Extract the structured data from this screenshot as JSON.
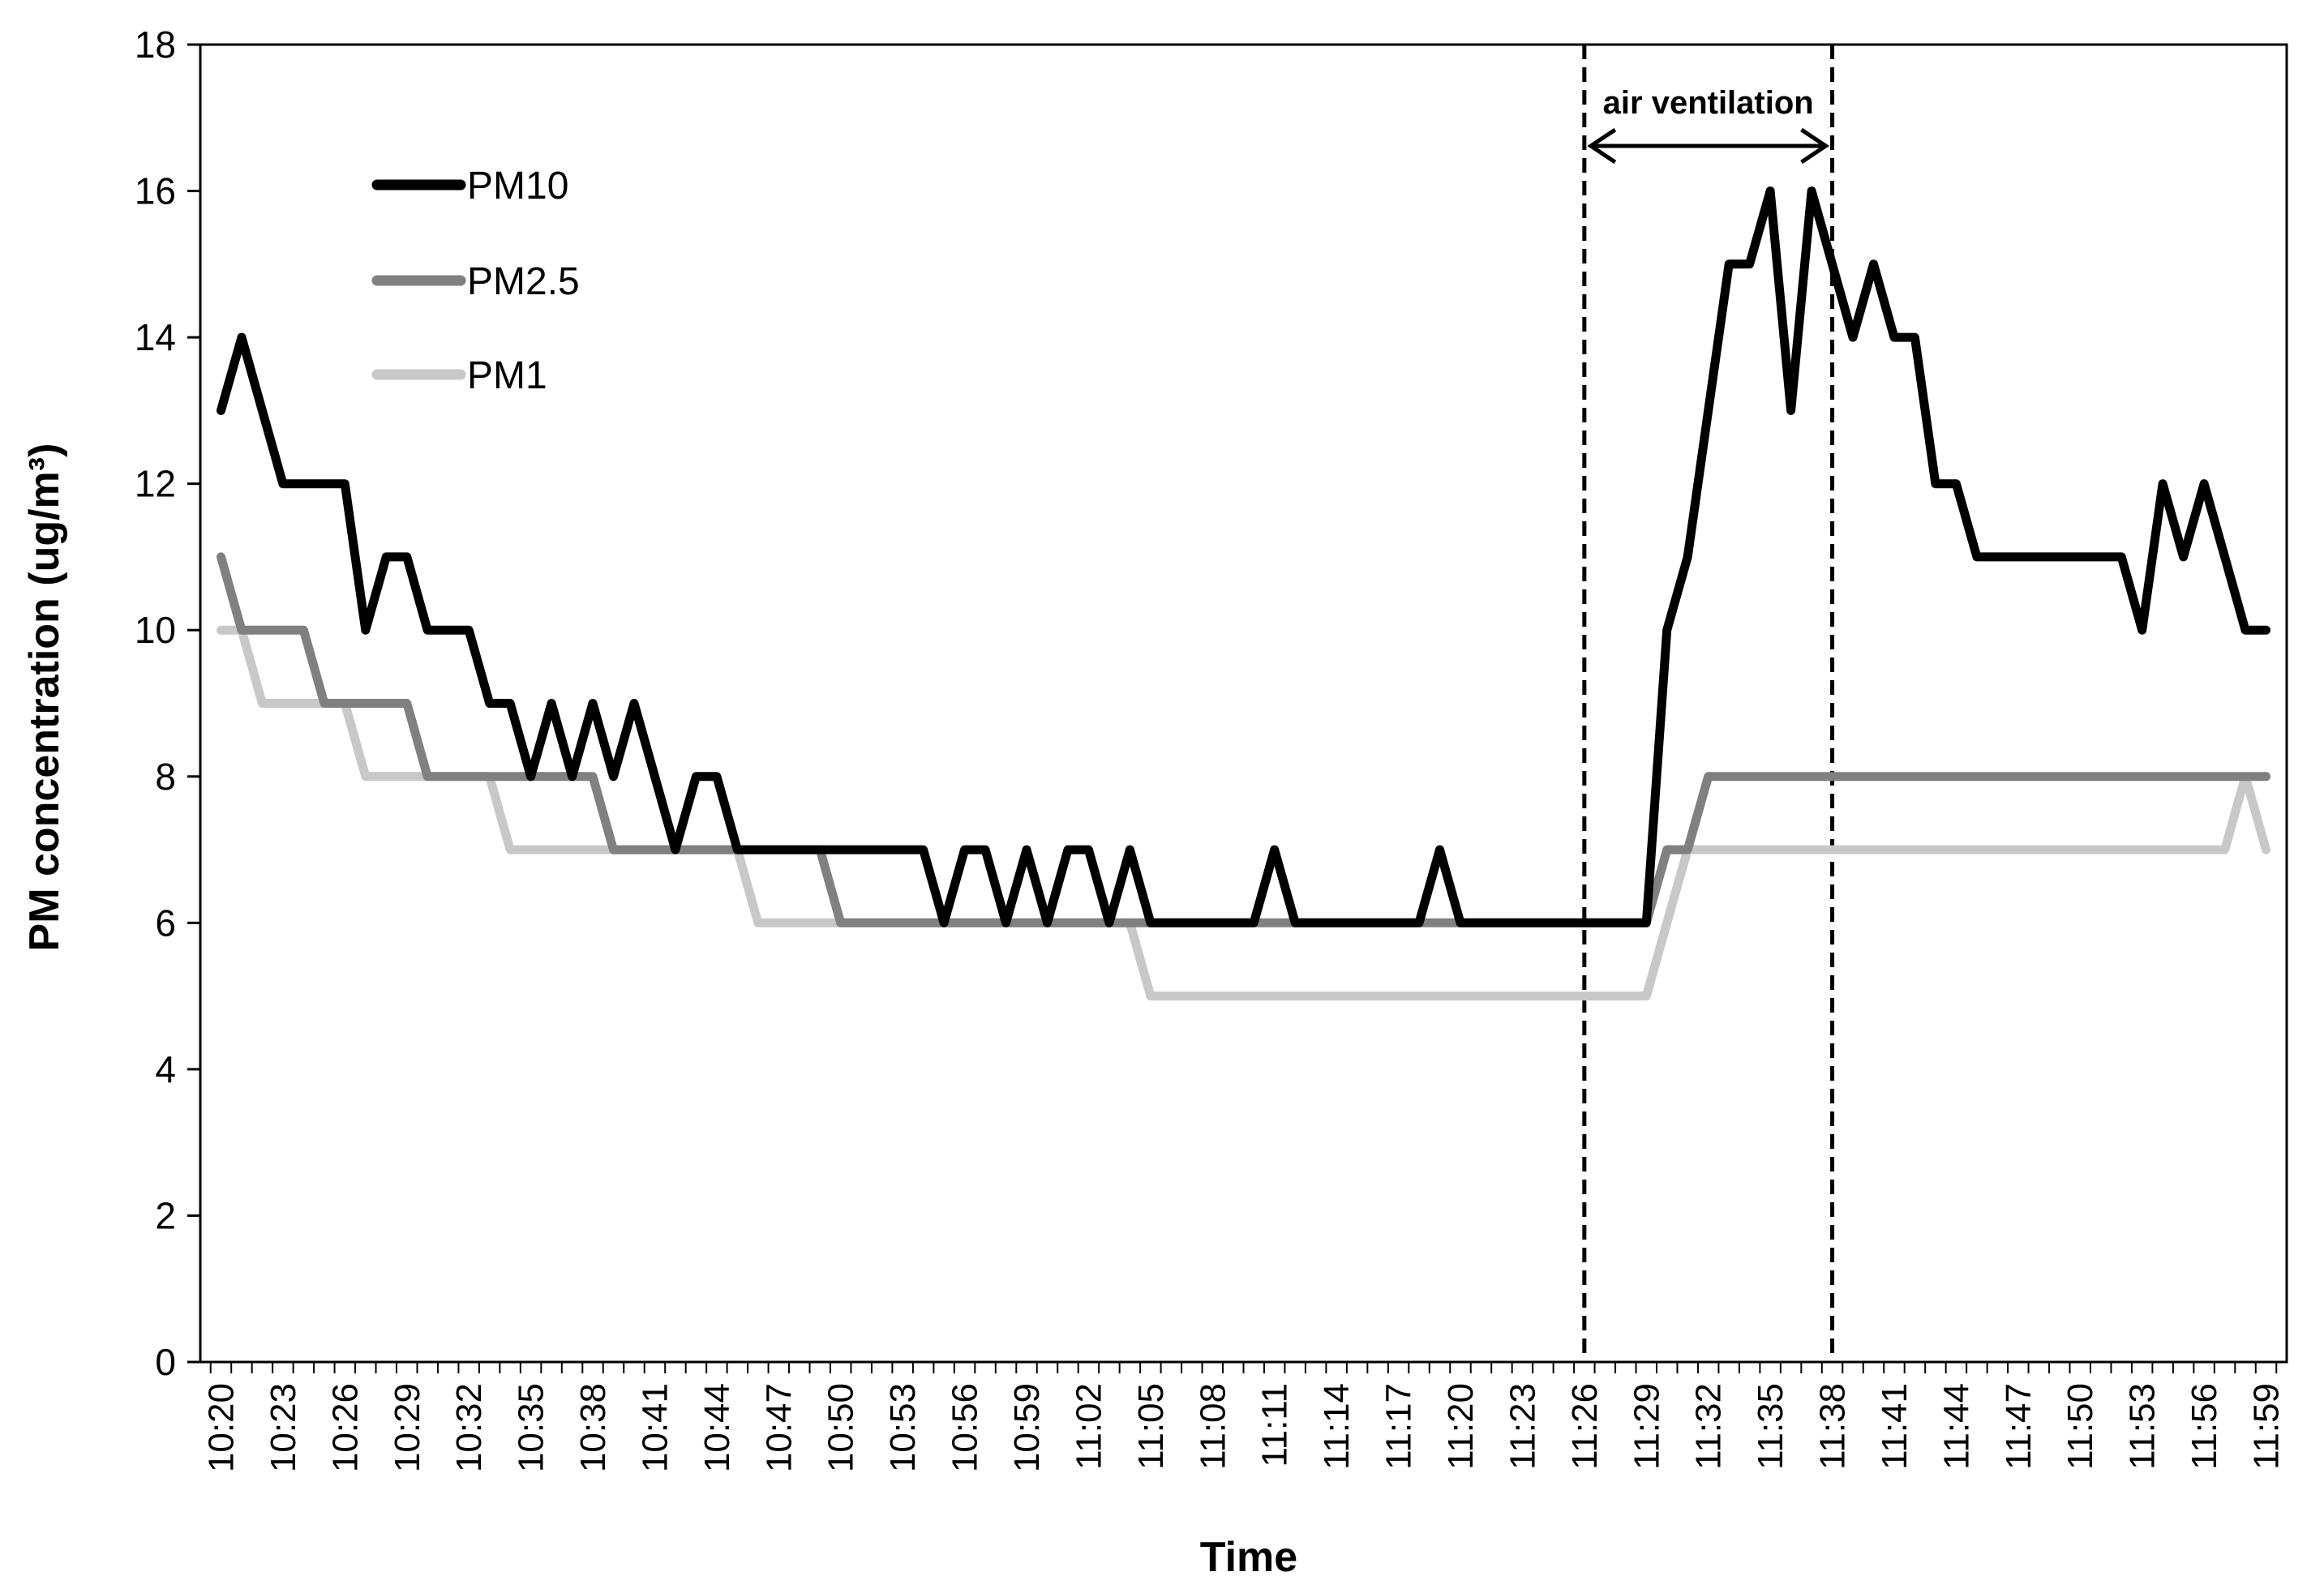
{
  "chart_data": {
    "type": "line",
    "xlabel": "Time",
    "ylabel": "PM concentration (ug/m³)",
    "ylim": [
      0,
      18
    ],
    "yticks": [
      0,
      2,
      4,
      6,
      8,
      10,
      12,
      14,
      16,
      18
    ],
    "grid": false,
    "legend_position": "top-left",
    "x": [
      "10:20",
      "10:21",
      "10:22",
      "10:23",
      "10:24",
      "10:25",
      "10:26",
      "10:27",
      "10:28",
      "10:29",
      "10:30",
      "10:31",
      "10:32",
      "10:33",
      "10:34",
      "10:35",
      "10:36",
      "10:37",
      "10:38",
      "10:39",
      "10:40",
      "10:41",
      "10:42",
      "10:43",
      "10:44",
      "10:45",
      "10:46",
      "10:47",
      "10:48",
      "10:49",
      "10:50",
      "10:51",
      "10:52",
      "10:53",
      "10:54",
      "10:55",
      "10:56",
      "10:57",
      "10:58",
      "10:59",
      "11:00",
      "11:01",
      "11:02",
      "11:03",
      "11:04",
      "11:05",
      "11:06",
      "11:07",
      "11:08",
      "11:09",
      "11:10",
      "11:11",
      "11:12",
      "11:13",
      "11:14",
      "11:15",
      "11:16",
      "11:17",
      "11:18",
      "11:19",
      "11:20",
      "11:21",
      "11:22",
      "11:23",
      "11:24",
      "11:25",
      "11:26",
      "11:27",
      "11:28",
      "11:29",
      "11:30",
      "11:31",
      "11:32",
      "11:33",
      "11:34",
      "11:35",
      "11:36",
      "11:37",
      "11:38",
      "11:39",
      "11:40",
      "11:41",
      "11:42",
      "11:43",
      "11:44",
      "11:45",
      "11:46",
      "11:47",
      "11:48",
      "11:49",
      "11:50",
      "11:51",
      "11:52",
      "11:53",
      "11:54",
      "11:55",
      "11:56",
      "11:57",
      "11:58",
      "11:59"
    ],
    "x_tick_labels": [
      "10:20",
      "10:23",
      "10:26",
      "10:29",
      "10:32",
      "10:35",
      "10:38",
      "10:41",
      "10:44",
      "10:47",
      "10:50",
      "10:53",
      "10:56",
      "10:59",
      "11:02",
      "11:05",
      "11:08",
      "11:11",
      "11:14",
      "11:17",
      "11:20",
      "11:23",
      "11:26",
      "11:29",
      "11:32",
      "11:35",
      "11:38",
      "11:41",
      "11:44",
      "11:47",
      "11:50",
      "11:53",
      "11:56",
      "11:59"
    ],
    "series": [
      {
        "name": "PM10",
        "color": "#000000",
        "values": [
          13,
          14,
          13,
          12,
          12,
          12,
          12,
          10,
          11,
          11,
          10,
          10,
          10,
          9,
          9,
          8,
          9,
          8,
          9,
          8,
          9,
          8,
          7,
          8,
          8,
          7,
          7,
          7,
          7,
          7,
          7,
          7,
          7,
          7,
          7,
          6,
          7,
          7,
          6,
          7,
          6,
          7,
          7,
          6,
          7,
          6,
          6,
          6,
          6,
          6,
          6,
          7,
          6,
          6,
          6,
          6,
          6,
          6,
          6,
          7,
          6,
          6,
          6,
          6,
          6,
          6,
          6,
          6,
          6,
          6,
          10,
          11,
          13,
          15,
          15,
          16,
          13,
          16,
          15,
          14,
          15,
          14,
          14,
          12,
          12,
          11,
          11,
          11,
          11,
          11,
          11,
          11,
          11,
          10,
          12,
          11,
          12,
          11,
          10,
          10
        ]
      },
      {
        "name": "PM2.5",
        "color": "#808080",
        "values": [
          11,
          10,
          10,
          10,
          10,
          9,
          9,
          9,
          9,
          9,
          8,
          8,
          8,
          8,
          8,
          8,
          8,
          8,
          8,
          7,
          7,
          7,
          7,
          7,
          7,
          7,
          7,
          7,
          7,
          7,
          6,
          6,
          6,
          6,
          6,
          6,
          6,
          6,
          6,
          6,
          6,
          6,
          6,
          6,
          6,
          6,
          6,
          6,
          6,
          6,
          6,
          6,
          6,
          6,
          6,
          6,
          6,
          6,
          6,
          6,
          6,
          6,
          6,
          6,
          6,
          6,
          6,
          6,
          6,
          6,
          7,
          7,
          8,
          8,
          8,
          8,
          8,
          8,
          8,
          8,
          8,
          8,
          8,
          8,
          8,
          8,
          8,
          8,
          8,
          8,
          8,
          8,
          8,
          8,
          8,
          8,
          8,
          8,
          8,
          8
        ]
      },
      {
        "name": "PM1",
        "color": "#c8c8c8",
        "values": [
          10,
          10,
          9,
          9,
          9,
          9,
          9,
          8,
          8,
          8,
          8,
          8,
          8,
          8,
          7,
          7,
          7,
          7,
          7,
          7,
          7,
          7,
          7,
          7,
          7,
          7,
          6,
          6,
          6,
          6,
          6,
          6,
          6,
          6,
          6,
          6,
          6,
          6,
          6,
          6,
          6,
          6,
          6,
          6,
          6,
          5,
          5,
          5,
          5,
          5,
          5,
          5,
          5,
          5,
          5,
          5,
          5,
          5,
          5,
          5,
          5,
          5,
          5,
          5,
          5,
          5,
          5,
          5,
          5,
          5,
          6,
          7,
          7,
          7,
          7,
          7,
          7,
          7,
          7,
          7,
          7,
          7,
          7,
          7,
          7,
          7,
          7,
          7,
          7,
          7,
          7,
          7,
          7,
          7,
          7,
          7,
          7,
          7,
          8,
          7
        ]
      }
    ],
    "annotation": {
      "label": "air ventilation",
      "start": "11:26",
      "end": "11:38"
    }
  }
}
